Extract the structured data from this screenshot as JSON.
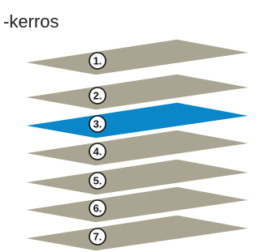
{
  "heading": "-kerros",
  "layers": [
    {
      "label": "1."
    },
    {
      "label": "2."
    },
    {
      "label": "3."
    },
    {
      "label": "4."
    },
    {
      "label": "5."
    },
    {
      "label": "6."
    },
    {
      "label": "7."
    }
  ]
}
